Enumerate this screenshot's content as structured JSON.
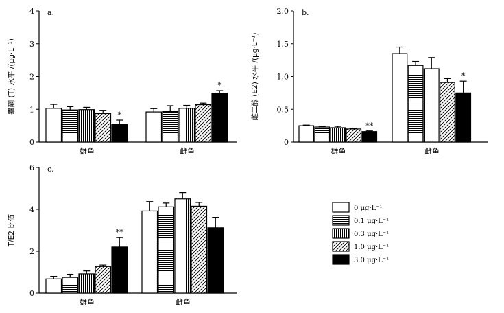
{
  "chart_data": [
    {
      "type": "bar",
      "panel_label": "a.",
      "ylabel": "睾酮 (T) 水平 /(μg·L⁻¹)",
      "ylim": [
        0,
        4
      ],
      "yticks": [
        "0",
        "1",
        "2",
        "3",
        "4"
      ],
      "categories": [
        "雄鱼",
        "雌鱼"
      ],
      "series": [
        {
          "values": [
            1.03,
            0.92
          ],
          "errors": [
            0.12,
            0.1
          ]
        },
        {
          "values": [
            0.98,
            0.93
          ],
          "errors": [
            0.1,
            0.18
          ]
        },
        {
          "values": [
            0.99,
            1.03
          ],
          "errors": [
            0.07,
            0.09
          ]
        },
        {
          "values": [
            0.87,
            1.14
          ],
          "errors": [
            0.1,
            0.05
          ]
        },
        {
          "values": [
            0.54,
            1.49
          ],
          "errors": [
            0.13,
            0.08
          ]
        }
      ],
      "annotations": [
        {
          "category": 0,
          "series": 4,
          "text": "*"
        },
        {
          "category": 1,
          "series": 4,
          "text": "*"
        }
      ]
    },
    {
      "type": "bar",
      "panel_label": "b.",
      "ylabel": "雌二醇 (E2) 水平 /(μg·L⁻¹)",
      "ylim": [
        0,
        2.0
      ],
      "yticks": [
        "0",
        "0.5",
        "1.0",
        "1.5",
        "2.0"
      ],
      "categories": [
        "雄鱼",
        "雌鱼"
      ],
      "series": [
        {
          "values": [
            0.25,
            1.35
          ],
          "errors": [
            0.01,
            0.1
          ]
        },
        {
          "values": [
            0.23,
            1.17
          ],
          "errors": [
            0.01,
            0.06
          ]
        },
        {
          "values": [
            0.22,
            1.12
          ],
          "errors": [
            0.02,
            0.17
          ]
        },
        {
          "values": [
            0.2,
            0.91
          ],
          "errors": [
            0.01,
            0.06
          ]
        },
        {
          "values": [
            0.16,
            0.75
          ],
          "errors": [
            0.01,
            0.18
          ]
        }
      ],
      "annotations": [
        {
          "category": 0,
          "series": 4,
          "text": "**"
        },
        {
          "category": 1,
          "series": 4,
          "text": "*"
        }
      ]
    },
    {
      "type": "bar",
      "panel_label": "c.",
      "ylabel": "T/E2 比值",
      "ylim": [
        0,
        6
      ],
      "yticks": [
        "0",
        "2",
        "4",
        "6"
      ],
      "categories": [
        "雄鱼",
        "雌鱼"
      ],
      "series": [
        {
          "values": [
            0.68,
            3.92
          ],
          "errors": [
            0.12,
            0.45
          ]
        },
        {
          "values": [
            0.75,
            4.12
          ],
          "errors": [
            0.15,
            0.18
          ]
        },
        {
          "values": [
            0.92,
            4.5
          ],
          "errors": [
            0.14,
            0.3
          ]
        },
        {
          "values": [
            1.27,
            4.15
          ],
          "errors": [
            0.07,
            0.18
          ]
        },
        {
          "values": [
            2.2,
            3.12
          ],
          "errors": [
            0.45,
            0.5
          ]
        }
      ],
      "annotations": [
        {
          "category": 0,
          "series": 4,
          "text": "**"
        }
      ]
    }
  ],
  "legend": {
    "entries": [
      {
        "label": "0 μg·L⁻¹",
        "pattern": "white"
      },
      {
        "label": "0.1 μg·L⁻¹",
        "pattern": "horizontal-lines"
      },
      {
        "label": "0.3 μg·L⁻¹",
        "pattern": "vertical-lines"
      },
      {
        "label": "1.0 μg·L⁻¹",
        "pattern": "diagonal-lines"
      },
      {
        "label": "3.0 μg·L⁻¹",
        "pattern": "solid-black"
      }
    ]
  }
}
